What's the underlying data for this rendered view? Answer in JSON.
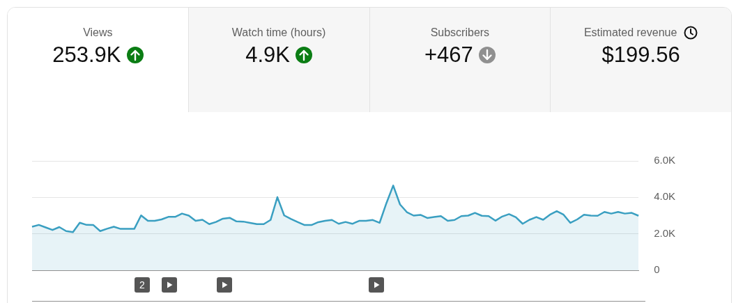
{
  "chart_data": [
    {
      "type": "other",
      "annotations": [
        "Views",
        "253.9K",
        "Watch time (hours)",
        "4.9K",
        "Subscribers",
        "+467",
        "Estimated revenue",
        "$199.56"
      ]
    },
    {
      "type": "area",
      "categories": [
        null,
        null,
        null,
        null,
        null,
        null,
        null,
        null,
        null,
        null,
        null,
        null,
        null,
        null,
        null,
        null,
        null,
        null,
        null,
        null,
        null,
        null,
        null,
        null,
        null,
        null,
        null,
        null,
        null,
        null,
        null,
        null,
        null,
        null,
        null,
        null,
        null,
        null,
        null,
        null,
        null,
        null,
        null,
        null,
        null,
        null,
        null,
        null,
        null,
        null,
        null,
        null,
        null,
        null,
        null,
        null,
        null,
        null,
        null,
        null,
        null,
        null,
        null,
        null,
        null,
        null,
        null,
        null,
        null,
        null,
        null,
        null,
        null,
        null,
        null,
        null,
        null,
        null,
        null,
        null,
        null,
        null,
        null,
        null,
        null,
        null,
        null,
        null,
        null,
        null
      ],
      "series": [
        {
          "color": "#3a9fc1",
          "values": [
            2390,
            2490,
            2350,
            2210,
            2370,
            2150,
            2090,
            2610,
            2490,
            2480,
            2150,
            2280,
            2390,
            2270,
            2270,
            2270,
            3010,
            2710,
            2710,
            2790,
            2930,
            2930,
            3110,
            3000,
            2710,
            2770,
            2530,
            2650,
            2830,
            2880,
            2680,
            2670,
            2600,
            2530,
            2530,
            2760,
            4010,
            3010,
            2810,
            2640,
            2480,
            2480,
            2640,
            2710,
            2760,
            2550,
            2650,
            2550,
            2710,
            2710,
            2760,
            2600,
            3680,
            4650,
            3610,
            3190,
            3000,
            3040,
            2870,
            2920,
            2970,
            2710,
            2760,
            2970,
            3000,
            3150,
            2990,
            2970,
            2720,
            2950,
            3080,
            2910,
            2550,
            2770,
            2920,
            2770,
            3050,
            3240,
            3050,
            2600,
            2790,
            3050,
            3000,
            2990,
            3200,
            3110,
            3200,
            3110,
            3150,
            2990
          ]
        }
      ],
      "ylim": [
        0,
        6000
      ],
      "yticks": [
        {
          "value": 0,
          "label": "0"
        },
        {
          "value": 2000,
          "label": "2.0K"
        },
        {
          "value": 4000,
          "label": "4.0K"
        },
        {
          "value": 6000,
          "label": "6.0K"
        }
      ],
      "grid": "y",
      "legend": false,
      "annotations": [
        "2"
      ]
    }
  ]
}
